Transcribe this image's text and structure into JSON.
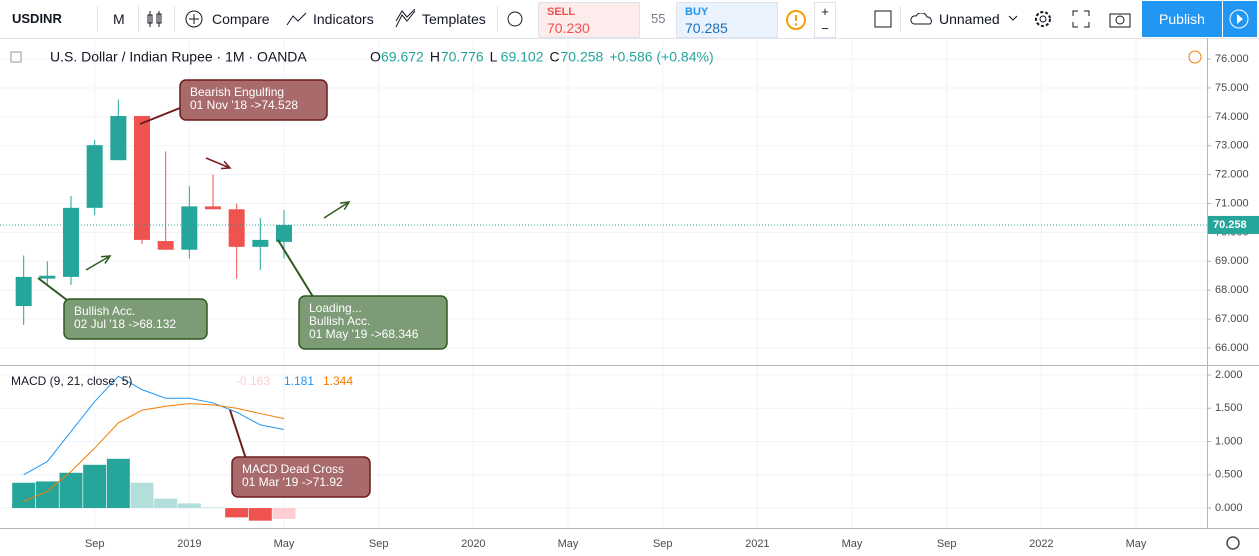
{
  "toolbar": {
    "symbol": "USDINR",
    "interval": "M",
    "compare": "Compare",
    "indicators": "Indicators",
    "templates": "Templates",
    "sell_label": "SELL",
    "sell_price": "70.230",
    "spread": "55",
    "buy_label": "BUY",
    "buy_price": "70.285",
    "layout_name": "Unnamed",
    "publish": "Publish"
  },
  "chart_data": [
    {
      "type": "candlestick",
      "title": "U.S. Dollar / Indian Rupee · 1M · OANDA",
      "ohlc_labels": [
        "O",
        "H",
        "L",
        "C"
      ],
      "change": "+0.586 (+0.84%)",
      "x": [
        "2018-06",
        "2018-07",
        "2018-08",
        "2018-09",
        "2018-10",
        "2018-11",
        "2018-12",
        "2019-01",
        "2019-02",
        "2019-03",
        "2019-04",
        "2019-05"
      ],
      "open": [
        67.45,
        68.4,
        68.46,
        70.85,
        72.5,
        74.03,
        69.7,
        69.4,
        70.9,
        70.8,
        69.5,
        69.672
      ],
      "high": [
        69.2,
        69.0,
        71.26,
        73.2,
        74.6,
        74.03,
        72.8,
        71.6,
        72.0,
        71.0,
        70.5,
        70.776
      ],
      "low": [
        66.8,
        68.2,
        68.18,
        70.6,
        72.5,
        69.6,
        69.4,
        69.1,
        70.8,
        68.4,
        68.7,
        69.102
      ],
      "close": [
        68.46,
        68.5,
        70.85,
        73.02,
        74.03,
        69.74,
        69.4,
        70.9,
        70.8,
        69.5,
        69.74,
        70.258
      ],
      "up_color": "#26a69a",
      "down_color": "#ef5350",
      "ylim": [
        65.41,
        76.66
      ],
      "yticks": [
        {
          "value": 66,
          "label": "66.000"
        },
        {
          "value": 67,
          "label": "67.000"
        },
        {
          "value": 68,
          "label": "68.000"
        },
        {
          "value": 69,
          "label": "69.000"
        },
        {
          "value": 70,
          "label": "70.000"
        },
        {
          "value": 71,
          "label": "71.000"
        },
        {
          "value": 72,
          "label": "72.000"
        },
        {
          "value": 73,
          "label": "73.000"
        },
        {
          "value": 74,
          "label": "74.000"
        },
        {
          "value": 75,
          "label": "75.000"
        },
        {
          "value": 76,
          "label": "76.000"
        }
      ],
      "xlim": [
        "2018-05",
        "2022-08"
      ],
      "xticks": [
        {
          "value": "2018-09",
          "label": "Sep"
        },
        {
          "value": "2019-01",
          "label": "2019"
        },
        {
          "value": "2019-05",
          "label": "May"
        },
        {
          "value": "2019-09",
          "label": "Sep"
        },
        {
          "value": "2020-01",
          "label": "2020"
        },
        {
          "value": "2020-05",
          "label": "May"
        },
        {
          "value": "2020-09",
          "label": "Sep"
        },
        {
          "value": "2021-01",
          "label": "2021"
        },
        {
          "value": "2021-05",
          "label": "May"
        },
        {
          "value": "2021-09",
          "label": "Sep"
        },
        {
          "value": "2022-01",
          "label": "2022"
        },
        {
          "value": "2022-05",
          "label": "May"
        }
      ],
      "annotations": [
        {
          "lines": [
            "Bearish Engulfing",
            "01 Nov '18 ->74.528"
          ]
        },
        {
          "lines": [
            "Bullish Acc.",
            "02 Jul '18 ->68.132"
          ]
        },
        {
          "lines": [
            "Loading...",
            "Bullish Acc.",
            "01 May '19 ->68.346"
          ]
        }
      ]
    },
    {
      "type": "macd",
      "title": "MACD (9, 21, close, 5)",
      "histogram": {
        "values": [
          0.38,
          0.4,
          0.53,
          0.65,
          0.74,
          0.38,
          0.14,
          0.07,
          0.01,
          -0.14,
          -0.19,
          -0.163
        ],
        "colors": {
          "rise_above": "#26a69a",
          "fall_above": "#b2dfdb",
          "fall_below": "#ef5350",
          "rise_below": "#ffcdd2"
        }
      },
      "series": [
        {
          "color": "#2196f3",
          "values": [
            0.5,
            0.7,
            1.15,
            1.6,
            1.98,
            1.78,
            1.65,
            1.65,
            1.58,
            1.44,
            1.25,
            1.181
          ]
        },
        {
          "color": "#f57c00",
          "values": [
            0.1,
            0.25,
            0.55,
            0.9,
            1.28,
            1.47,
            1.53,
            1.57,
            1.55,
            1.5,
            1.42,
            1.344
          ]
        }
      ],
      "ylim": [
        -0.3,
        2.135
      ],
      "yticks": [
        {
          "value": 0,
          "label": "0.000"
        },
        {
          "value": 0.5,
          "label": "0.500"
        },
        {
          "value": 1,
          "label": "1.000"
        },
        {
          "value": 1.5,
          "label": "1.500"
        },
        {
          "value": 2,
          "label": "2.000"
        }
      ],
      "annotations": [
        {
          "lines": [
            "MACD Dead Cross",
            "01 Mar '19 ->71.92"
          ]
        }
      ]
    }
  ]
}
